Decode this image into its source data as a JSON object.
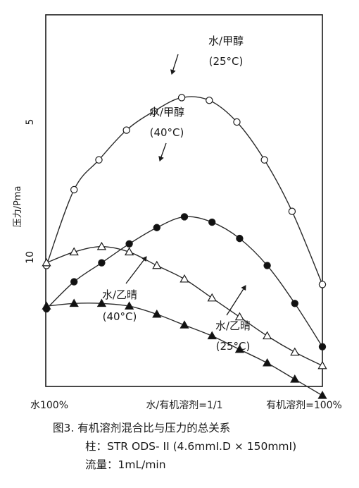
{
  "chart_data": {
    "type": "line",
    "x": [
      0,
      10,
      20,
      30,
      40,
      50,
      60,
      70,
      80,
      90,
      100
    ],
    "x_tick_labels": [
      "水100%",
      "水/有机溶剂=1/1",
      "有机溶剂=100%"
    ],
    "ylabel": "压力/Pma",
    "y_tick_labels": [
      "5",
      "10"
    ],
    "ylim": [
      3,
      15
    ],
    "y_inverted": true,
    "grid": false,
    "series": [
      {
        "name": "水/甲醇 (25°C)",
        "marker": "open-circle",
        "x": [
          0,
          10,
          19,
          29,
          39,
          49,
          59,
          69,
          79,
          89,
          100
        ],
        "values": [
          10.3,
          7.5,
          6.4,
          5.3,
          4.6,
          4.1,
          4.2,
          5.0,
          6.4,
          8.3,
          11.0
        ]
      },
      {
        "name": "水/甲醇 (40°C)",
        "marker": "filled-circle",
        "x": [
          0,
          10,
          20,
          30,
          40,
          50,
          60,
          70,
          80,
          90,
          100
        ],
        "values": [
          11.9,
          10.9,
          10.2,
          9.5,
          8.9,
          8.5,
          8.7,
          9.3,
          10.3,
          11.7,
          13.3
        ]
      },
      {
        "name": "水/乙晴 (25°C)",
        "marker": "open-triangle",
        "x": [
          0,
          10,
          20,
          30,
          40,
          50,
          60,
          70,
          80,
          90,
          100
        ],
        "values": [
          10.2,
          9.8,
          9.6,
          9.8,
          10.3,
          10.8,
          11.5,
          12.2,
          12.9,
          13.5,
          14.0
        ]
      },
      {
        "name": "水/乙晴 (40°C)",
        "marker": "filled-triangle",
        "x": [
          0,
          10,
          20,
          30,
          40,
          50,
          60,
          70,
          80,
          90,
          100
        ],
        "values": [
          11.8,
          11.7,
          11.7,
          11.8,
          12.1,
          12.5,
          12.9,
          13.4,
          13.9,
          14.5,
          15.1
        ]
      }
    ],
    "annotations": [
      {
        "line1": "水/甲醇",
        "line2": "(25°C)"
      },
      {
        "line1": "水/甲醇",
        "line2": "(40°C)"
      },
      {
        "line1": "水/乙晴",
        "line2": "(40°C)"
      },
      {
        "line1": "水/乙晴",
        "line2": "(25°C)"
      }
    ]
  },
  "caption": {
    "title": "图3. 有机溶剂混合比与压力的总关系",
    "column": "柱：STR ODS- II (4.6mmI.D × 150mmI)",
    "flow": "流量：1mL/min"
  },
  "colors": {
    "line": "#2a2a2a",
    "frame": "#1a1a1a"
  }
}
